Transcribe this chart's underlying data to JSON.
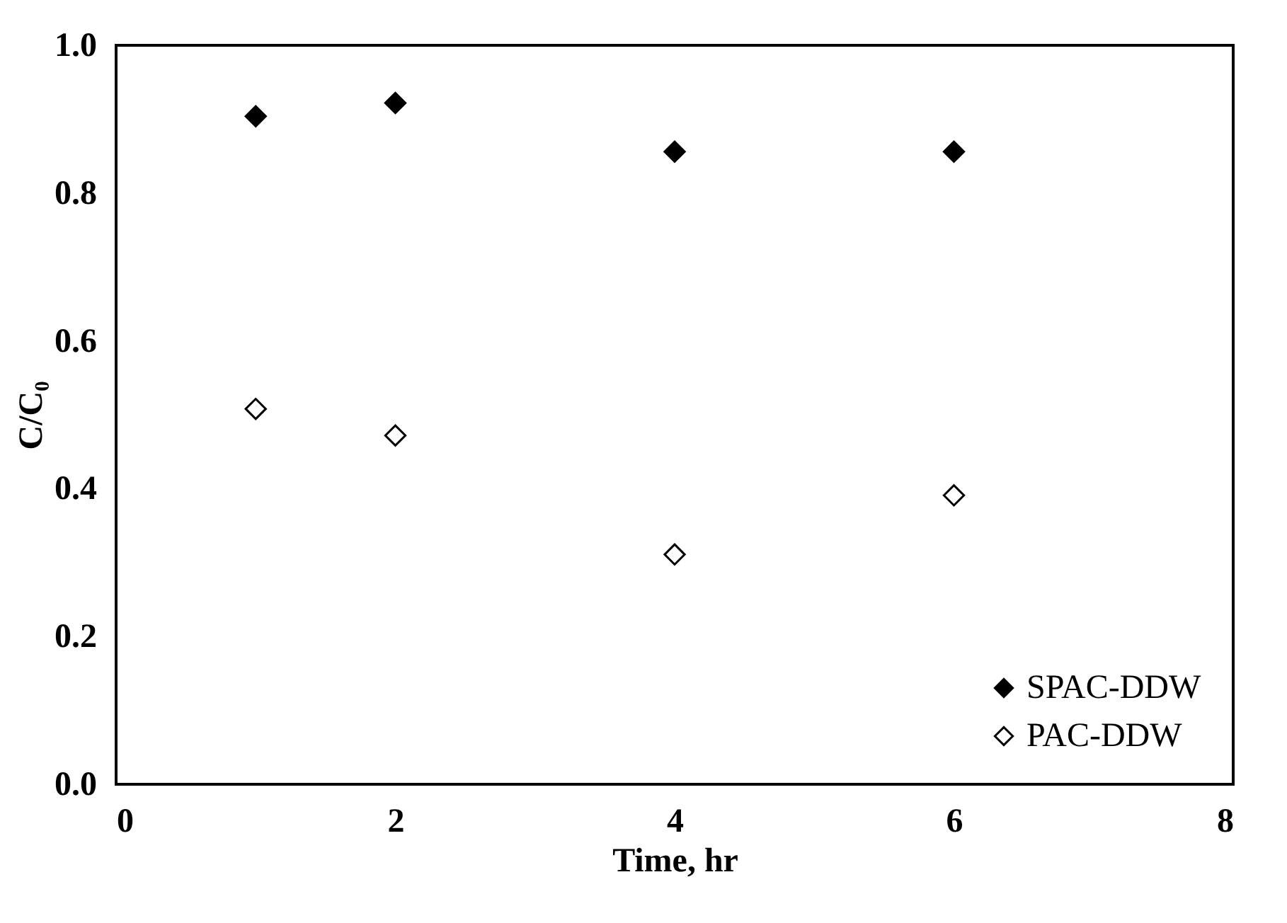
{
  "chart_data": {
    "type": "scatter",
    "xlabel": "Time, hr",
    "ylabel": "C/C₀",
    "x": [
      1,
      2,
      4,
      6
    ],
    "series": [
      {
        "name": "SPAC-DDW",
        "color": "#000000",
        "values": [
          0.904,
          0.922,
          0.856,
          0.856
        ]
      },
      {
        "name": "PAC-DDW",
        "color": "#ffffff",
        "values": [
          0.508,
          0.472,
          0.311,
          0.391
        ]
      }
    ],
    "xlim": [
      0,
      8
    ],
    "xticks": [
      0,
      2,
      4,
      6,
      8
    ],
    "ylim": [
      0,
      1
    ],
    "yticks": [
      {
        "value": 0,
        "label": "0.0"
      },
      {
        "value": 0.2,
        "label": "0.2"
      },
      {
        "value": 0.4,
        "label": "0.4"
      },
      {
        "value": 0.6,
        "label": "0.6"
      },
      {
        "value": 0.8,
        "label": "0.8"
      },
      {
        "value": 1,
        "label": "1.0"
      }
    ],
    "marker": "diamond",
    "grid": false,
    "legend": "bottom right"
  }
}
